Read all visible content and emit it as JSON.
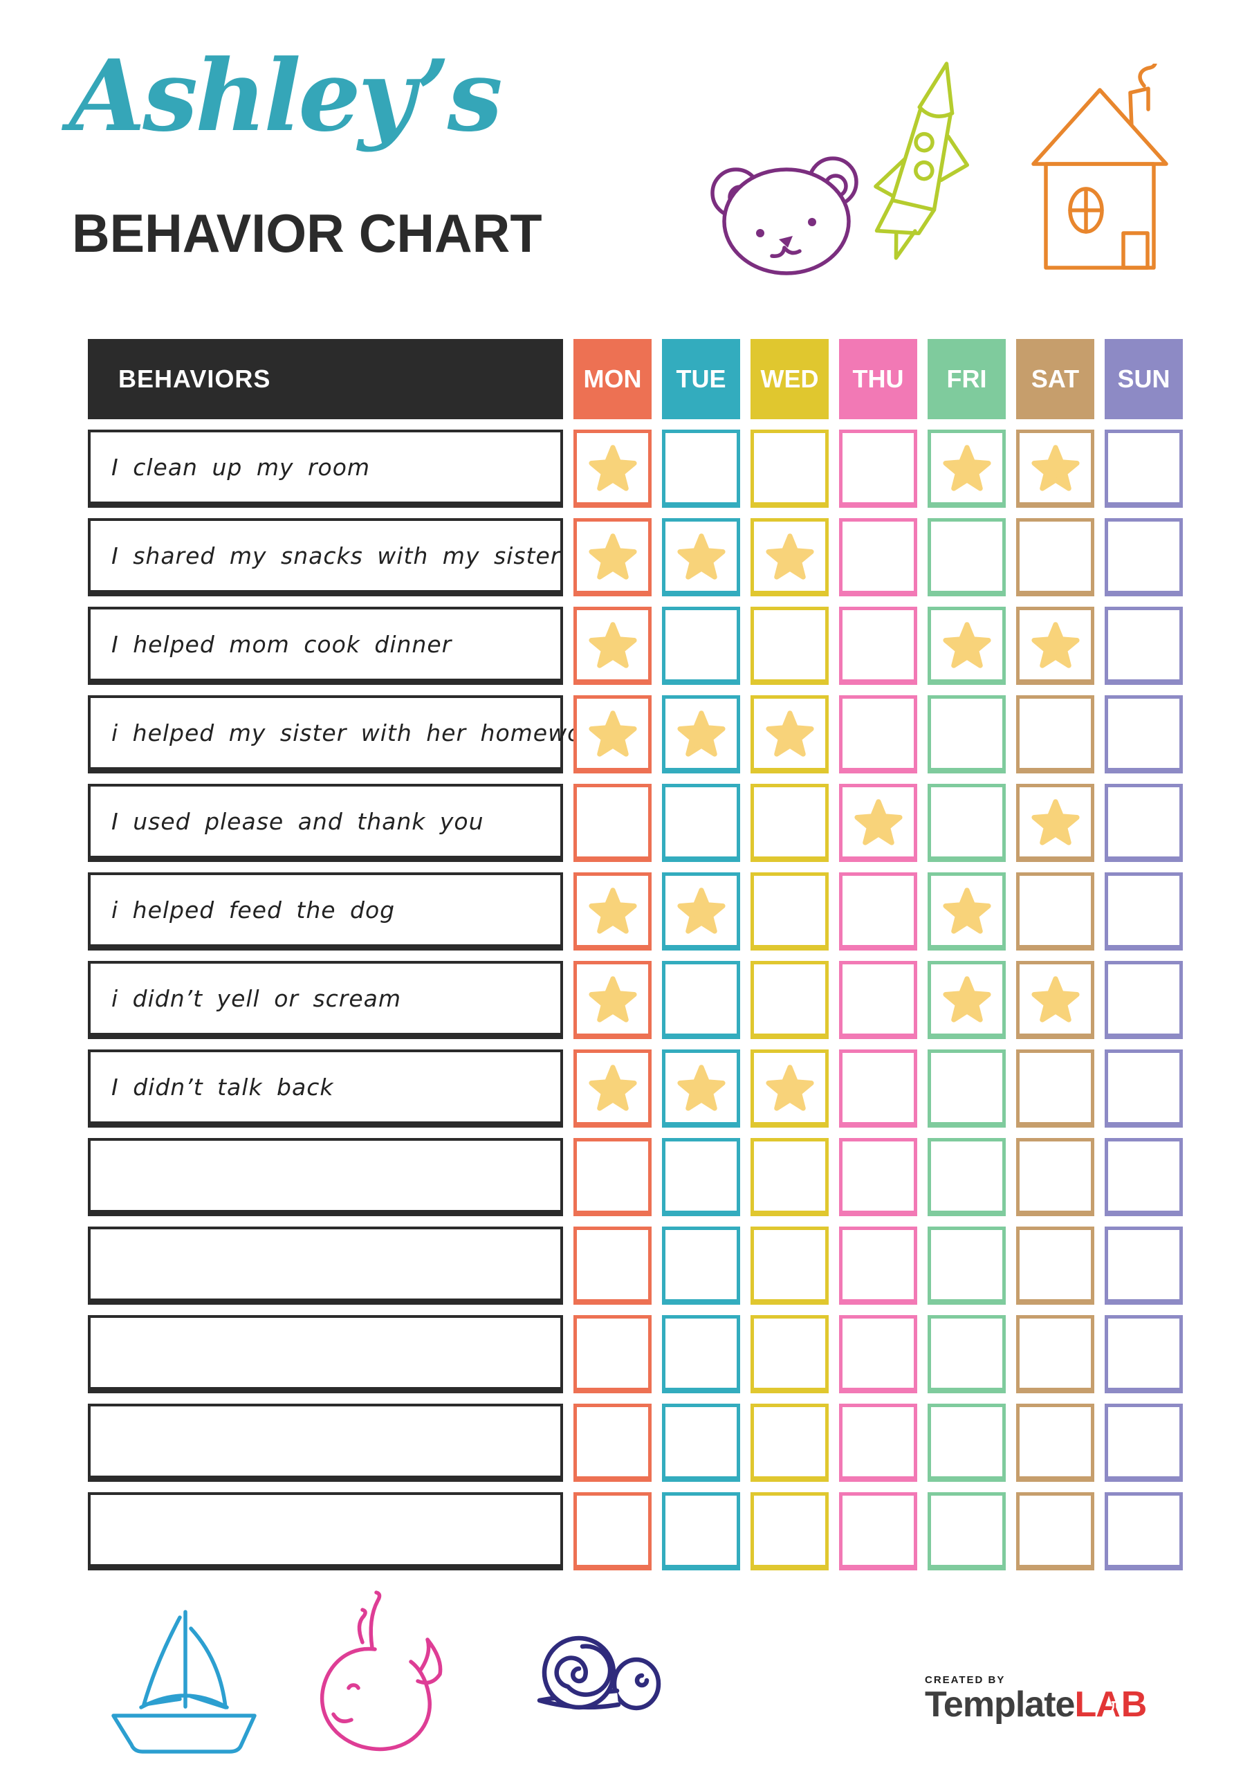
{
  "header": {
    "owner_name": "Ashley’s",
    "title": "BEHAVIOR CHART"
  },
  "table": {
    "behaviors_header": "BEHAVIORS",
    "days": [
      {
        "label": "MON",
        "color": "#ED7153"
      },
      {
        "label": "TUE",
        "color": "#33ACBE"
      },
      {
        "label": "WED",
        "color": "#E0C72F"
      },
      {
        "label": "THU",
        "color": "#F279B5"
      },
      {
        "label": "FRI",
        "color": "#7FCB9D"
      },
      {
        "label": "SAT",
        "color": "#C69E6C"
      },
      {
        "label": "SUN",
        "color": "#8D8AC5"
      }
    ],
    "rows": [
      {
        "label": "I clean up my room",
        "stars": [
          true,
          false,
          false,
          false,
          true,
          true,
          false
        ]
      },
      {
        "label": "I shared my snacks with my sister",
        "stars": [
          true,
          true,
          true,
          false,
          false,
          false,
          false
        ]
      },
      {
        "label": "I helped mom cook dinner",
        "stars": [
          true,
          false,
          false,
          false,
          true,
          true,
          false
        ]
      },
      {
        "label": "i helped my sister with her homework",
        "stars": [
          true,
          true,
          true,
          false,
          false,
          false,
          false
        ]
      },
      {
        "label": "I used please and thank you",
        "stars": [
          false,
          false,
          false,
          true,
          false,
          true,
          false
        ]
      },
      {
        "label": "i helped feed the dog",
        "stars": [
          true,
          true,
          false,
          false,
          true,
          false,
          false
        ]
      },
      {
        "label": "i didn’t yell or scream",
        "stars": [
          true,
          false,
          false,
          false,
          true,
          true,
          false
        ]
      },
      {
        "label": "I didn’t talk back",
        "stars": [
          true,
          true,
          true,
          false,
          false,
          false,
          false
        ]
      },
      {
        "label": "",
        "stars": [
          false,
          false,
          false,
          false,
          false,
          false,
          false
        ]
      },
      {
        "label": "",
        "stars": [
          false,
          false,
          false,
          false,
          false,
          false,
          false
        ]
      },
      {
        "label": "",
        "stars": [
          false,
          false,
          false,
          false,
          false,
          false,
          false
        ]
      },
      {
        "label": "",
        "stars": [
          false,
          false,
          false,
          false,
          false,
          false,
          false
        ]
      },
      {
        "label": "",
        "stars": [
          false,
          false,
          false,
          false,
          false,
          false,
          false
        ]
      }
    ]
  },
  "footer": {
    "created_by": "CREATED BY",
    "brand_name_1": "Template",
    "brand_name_2": "LAB"
  },
  "icons": {
    "header_doodles": [
      "bear-icon",
      "rocket-icon",
      "house-icon"
    ],
    "footer_doodles": [
      "sailboat-icon",
      "whale-icon",
      "snail-icon"
    ],
    "cell_marker": "star-icon",
    "brand_mark": "flask-icon"
  },
  "colors": {
    "title_script": "#35A6B8",
    "title_main": "#2B2B2B",
    "header_bg": "#2B2B2B",
    "star": "#F8D37A",
    "bear": "#7B2E7F",
    "rocket": "#B5CC2E",
    "house": "#E8862D",
    "sailboat": "#2C9FD0",
    "whale": "#DE3D95",
    "snail": "#2F2B7C",
    "brand_red": "#E23636",
    "brand_gray": "#3F3F3F"
  }
}
